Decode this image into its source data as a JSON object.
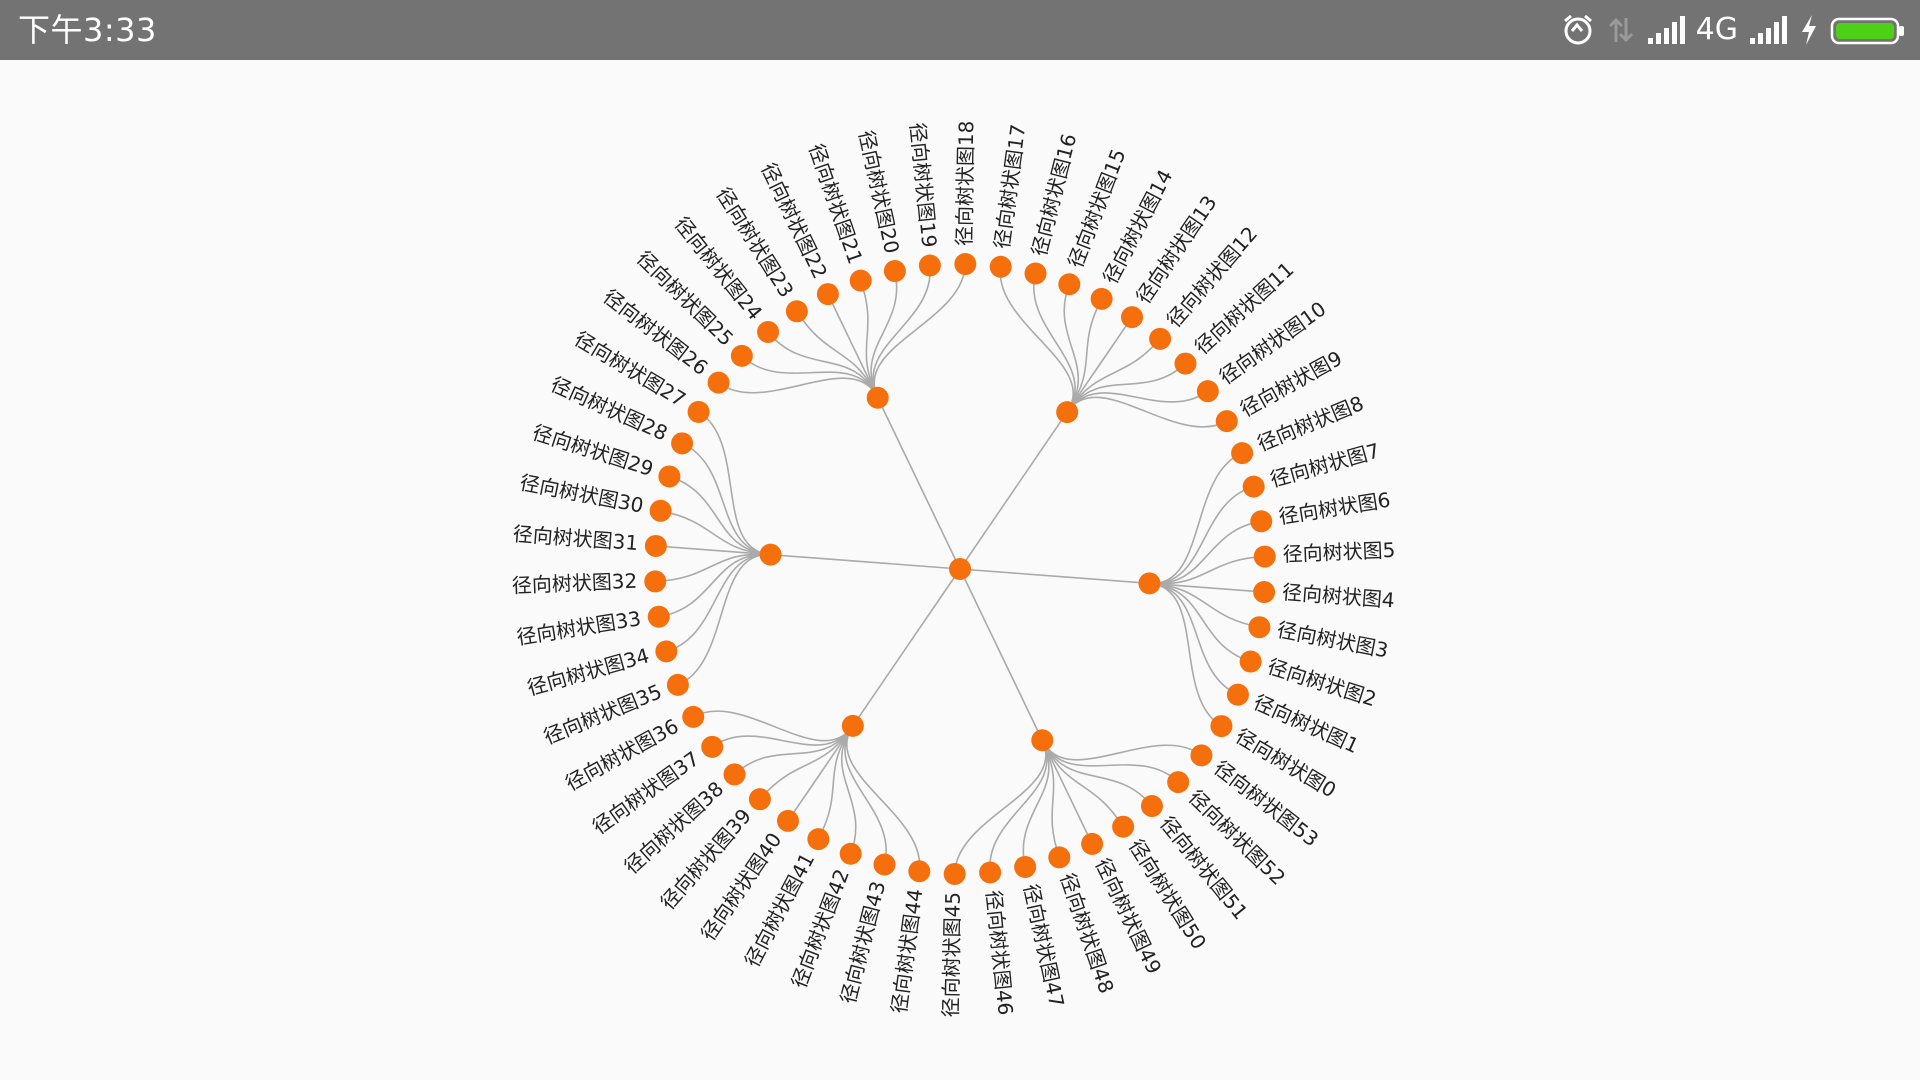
{
  "status_bar": {
    "time": "下午3:33",
    "network_type": "4G",
    "icons": [
      "alarm-icon",
      "data-activity-icon",
      "signal-icon",
      "network-type-label",
      "signal-icon-2",
      "charging-icon",
      "battery-icon"
    ],
    "battery_color": "#4cd117"
  },
  "tree": {
    "node_color": "#f5700c",
    "link_color": "#aaaaaa",
    "root": {
      "children": [
        {
          "leaves": [
            "径向树状图0",
            "径向树状图1",
            "径向树状图2",
            "径向树状图3",
            "径向树状图4",
            "径向树状图5",
            "径向树状图6",
            "径向树状图7",
            "径向树状图8"
          ]
        },
        {
          "leaves": [
            "径向树状图9",
            "径向树状图10",
            "径向树状图11",
            "径向树状图12",
            "径向树状图13",
            "径向树状图14",
            "径向树状图15",
            "径向树状图16",
            "径向树状图17"
          ]
        },
        {
          "leaves": [
            "径向树状图18",
            "径向树状图19",
            "径向树状图20",
            "径向树状图21",
            "径向树状图22",
            "径向树状图23",
            "径向树状图24",
            "径向树状图25",
            "径向树状图26"
          ]
        },
        {
          "leaves": [
            "径向树状图27",
            "径向树状图28",
            "径向树状图29",
            "径向树状图30",
            "径向树状图31",
            "径向树状图32",
            "径向树状图33",
            "径向树状图34",
            "径向树状图35"
          ]
        },
        {
          "leaves": [
            "径向树状图36",
            "径向树状图37",
            "径向树状图38",
            "径向树状图39",
            "径向树状图40",
            "径向树状图41",
            "径向树状图42",
            "径向树状图43",
            "径向树状图44"
          ]
        },
        {
          "leaves": [
            "径向树状图45",
            "径向树状图46",
            "径向树状图47",
            "径向树状图48",
            "径向树状图49",
            "径向树状图50",
            "径向树状图51",
            "径向树状图52",
            "径向树状图53"
          ]
        }
      ]
    }
  }
}
